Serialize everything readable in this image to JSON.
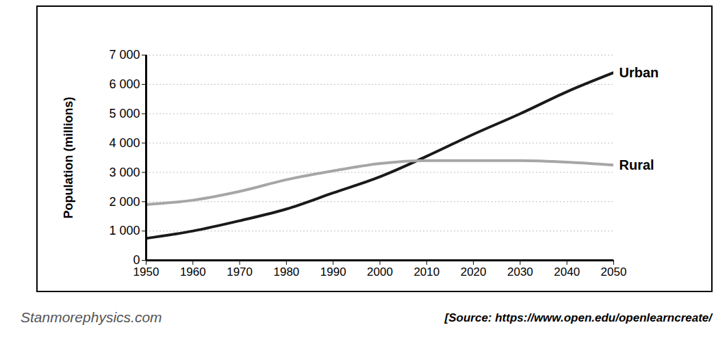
{
  "chart_data": {
    "type": "line",
    "y_label": "Population (millions)",
    "source": "[Source: https://www.open.edu/openlearncreate/",
    "watermark": "Stanmorephysics.com",
    "x": [
      1950,
      1960,
      1970,
      1980,
      1990,
      2000,
      2010,
      2020,
      2030,
      2040,
      2050
    ],
    "series": [
      {
        "name": "Urban",
        "color": "#1a1a1a",
        "values": [
          750,
          1000,
          1350,
          1750,
          2300,
          2850,
          3550,
          4300,
          5000,
          5750,
          6400
        ]
      },
      {
        "name": "Rural",
        "color": "#a6a6a6",
        "values": [
          1900,
          2050,
          2350,
          2750,
          3050,
          3300,
          3400,
          3400,
          3400,
          3350,
          3250
        ]
      }
    ],
    "xlim": [
      1950,
      2050
    ],
    "xticks": [
      1950,
      1960,
      1970,
      1980,
      1990,
      2000,
      2010,
      2020,
      2030,
      2040,
      2050
    ],
    "ylim": [
      0,
      7000
    ],
    "yticks": [
      0,
      {
        "value": 1000,
        "label": "1 000"
      },
      {
        "value": 2000,
        "label": "2 000"
      },
      {
        "value": 3000,
        "label": "3 000"
      },
      {
        "value": 4000,
        "label": "4 000"
      },
      {
        "value": 5000,
        "label": "5 000"
      },
      {
        "value": 6000,
        "label": "6 000"
      },
      {
        "value": 7000,
        "label": "7 000"
      }
    ],
    "grid": true
  }
}
